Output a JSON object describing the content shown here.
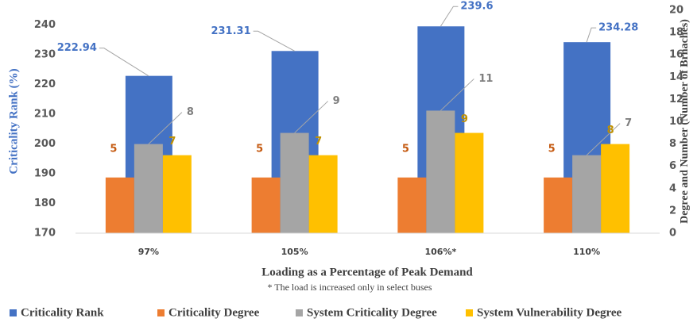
{
  "chart_data": {
    "type": "bar",
    "y_label": "Criticality Rank (%)",
    "y2_label": "Degree and Number (Number of Brnaches)",
    "x_label": "Loading as a Percentage of  Peak Demand",
    "footnote": "* The load is increased only in select buses",
    "categories": [
      "97%",
      "105%",
      "106%*",
      "110%"
    ],
    "series": [
      {
        "name": "Criticality Rank",
        "color": "#4472c4",
        "label_color": "#4472c4",
        "values": [
          222.94,
          231.31,
          239.6,
          234.28
        ]
      },
      {
        "name": "Criticality Degree",
        "color": "#ed7d31",
        "label_color": "#c55a11",
        "axis": "y2",
        "values": [
          5,
          5,
          5,
          5
        ]
      },
      {
        "name": "System Criticality Degree",
        "color": "#a5a5a5",
        "label_color": "#7f7f7f",
        "axis": "y2",
        "values": [
          8,
          9,
          11,
          7
        ]
      },
      {
        "name": "System Vulnerability Degree",
        "color": "#ffc000",
        "label_color": "#bf9000",
        "axis": "y2",
        "values": [
          7,
          7,
          9,
          8
        ]
      }
    ],
    "ylim": [
      170,
      245
    ],
    "yticks": [
      170,
      180,
      190,
      200,
      210,
      220,
      230,
      240
    ],
    "y2lim": [
      0,
      20
    ],
    "y2ticks": [
      0,
      2,
      4,
      6,
      8,
      10,
      12,
      14,
      16,
      18,
      20
    ],
    "legend": "bottom"
  }
}
